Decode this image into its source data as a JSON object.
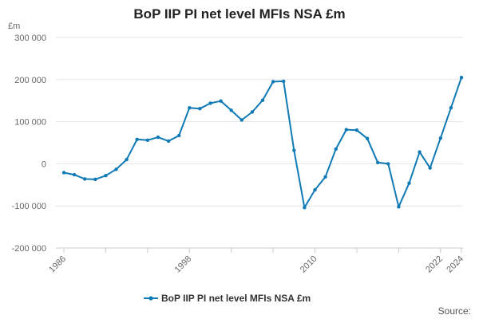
{
  "chart_data": {
    "type": "line",
    "title": "BoP IIP PI net level MFIs NSA £m",
    "ylabel": "£m",
    "xlabel": "",
    "ylim": [
      -200000,
      300000
    ],
    "yticks": [
      300000,
      200000,
      100000,
      0,
      -100000,
      -200000
    ],
    "ytick_labels": [
      "300 000",
      "200 000",
      "100 000",
      "0",
      "-100 000",
      "-200 000"
    ],
    "xlim": [
      1986,
      2024
    ],
    "xticks": [
      1986,
      1998,
      2010,
      2022,
      2024
    ],
    "xtick_labels": [
      "1986",
      "1998",
      "2010",
      "2022",
      "2024"
    ],
    "grid": true,
    "legend": "bottom",
    "series": [
      {
        "name": "BoP IIP PI net level MFIs NSA £m",
        "color": "#0f7ab5",
        "x": [
          1986,
          1987,
          1988,
          1989,
          1990,
          1991,
          1992,
          1993,
          1994,
          1995,
          1996,
          1997,
          1998,
          1999,
          2000,
          2001,
          2002,
          2003,
          2004,
          2005,
          2006,
          2007,
          2008,
          2009,
          2010,
          2011,
          2012,
          2013,
          2014,
          2015,
          2016,
          2017,
          2018,
          2019,
          2020,
          2021,
          2022,
          2023,
          2024
        ],
        "values": [
          -21000,
          -26000,
          -36000,
          -37000,
          -28000,
          -13000,
          10000,
          58000,
          56000,
          63000,
          54000,
          67000,
          133000,
          131000,
          144000,
          149000,
          127000,
          104000,
          123000,
          151000,
          195000,
          196000,
          32000,
          -104000,
          -62000,
          -31000,
          35000,
          81000,
          80000,
          60000,
          3000,
          0,
          -102000,
          -46000,
          28000,
          -10000,
          61000,
          133000,
          205000
        ]
      }
    ]
  },
  "legend_label": "BoP IIP PI net level MFIs NSA £m",
  "source_label": "Source:"
}
